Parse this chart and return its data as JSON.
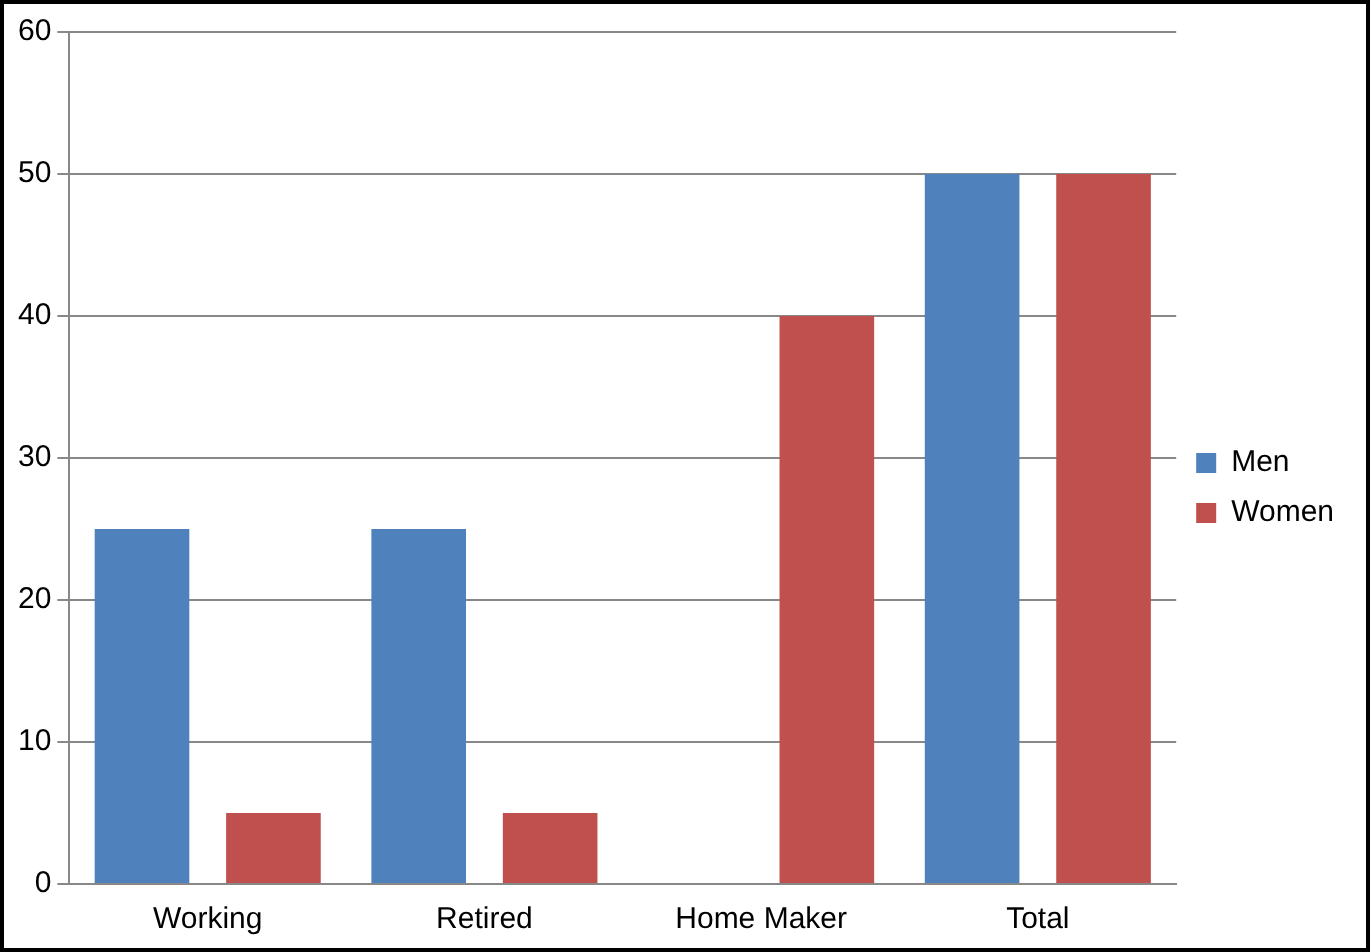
{
  "chart_data": {
    "type": "bar",
    "categories": [
      "Working",
      "Retired",
      "Home Maker",
      "Total"
    ],
    "series": [
      {
        "name": "Men",
        "color": "#4f81bd",
        "values": [
          25,
          25,
          0,
          50
        ]
      },
      {
        "name": "Women",
        "color": "#c0504d",
        "values": [
          5,
          5,
          40,
          50
        ]
      }
    ],
    "ylim": [
      0,
      60
    ],
    "yticks": [
      0,
      10,
      20,
      30,
      40,
      50,
      60
    ],
    "grid": "y",
    "legend": "right"
  }
}
